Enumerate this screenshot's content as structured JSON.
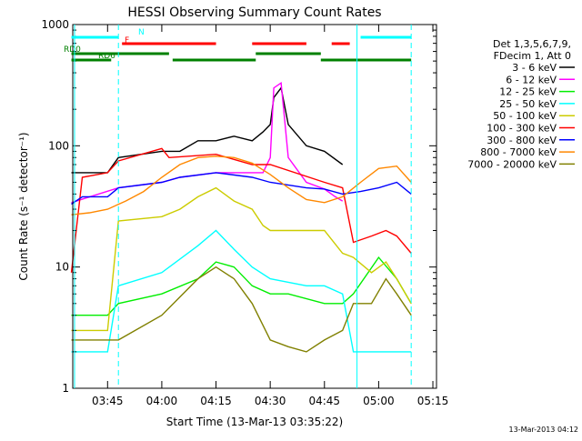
{
  "chart_data": {
    "type": "line",
    "title": "HESSI Observing Summary Count Rates",
    "xlabel": "Start Time (13-Mar-13 03:35:22)",
    "ylabel": "Count Rate (s⁻¹ detector⁻¹)",
    "y_scale": "log",
    "xlim": [
      "03:35:22",
      "05:16"
    ],
    "ylim": [
      1,
      1000
    ],
    "grid": false,
    "x_ticks": [
      "03:45",
      "04:00",
      "04:15",
      "04:30",
      "04:45",
      "05:00",
      "05:15"
    ],
    "y_ticks": [
      "1",
      "10",
      "100",
      "1000"
    ],
    "footer": "13-Mar-2013 04:12",
    "legend_position": "right",
    "legend_header": [
      "Det 1,3,5,6,7,9,",
      "FDecim 1, Att 0"
    ],
    "series": [
      {
        "name": "3 - 6 keV",
        "color": "#000000",
        "x": [
          "03:35",
          "03:45",
          "03:48",
          "04:00",
          "04:05",
          "04:10",
          "04:15",
          "04:20",
          "04:25",
          "04:28",
          "04:30",
          "04:31",
          "04:33",
          "04:35",
          "04:40",
          "04:45",
          "04:50"
        ],
        "y": [
          60,
          60,
          80,
          90,
          90,
          110,
          110,
          120,
          110,
          130,
          150,
          250,
          300,
          150,
          100,
          90,
          70
        ]
      },
      {
        "name": "6 - 12 keV",
        "color": "#ff00ff",
        "x": [
          "03:35",
          "03:48",
          "04:00",
          "04:05",
          "04:15",
          "04:25",
          "04:28",
          "04:30",
          "04:31",
          "04:33",
          "04:35",
          "04:40",
          "04:45",
          "04:48",
          "04:50"
        ],
        "y": [
          34,
          45,
          50,
          55,
          60,
          60,
          60,
          80,
          300,
          330,
          80,
          50,
          44,
          38,
          35
        ]
      },
      {
        "name": "12 - 25 keV",
        "color": "#00ee00",
        "x": [
          "03:35",
          "03:45",
          "03:48",
          "04:00",
          "04:10",
          "04:15",
          "04:20",
          "04:25",
          "04:30",
          "04:35",
          "04:45",
          "04:50",
          "04:53",
          "05:00",
          "05:05",
          "05:09"
        ],
        "y": [
          4,
          4,
          5,
          6,
          8,
          11,
          10,
          7,
          6,
          6,
          5,
          5,
          6,
          12,
          8,
          5
        ]
      },
      {
        "name": "25 - 50 keV",
        "color": "#00ffff",
        "x": [
          "03:35",
          "03:45",
          "03:48",
          "04:00",
          "04:10",
          "04:15",
          "04:20",
          "04:25",
          "04:30",
          "04:40",
          "04:45",
          "04:50",
          "04:53",
          "05:00",
          "05:05",
          "05:09"
        ],
        "y": [
          2,
          2,
          7,
          9,
          15,
          20,
          14,
          10,
          8,
          7,
          7,
          6,
          2,
          2,
          2,
          2
        ]
      },
      {
        "name": "50 - 100 keV",
        "color": "#cccc00",
        "x": [
          "03:35",
          "03:45",
          "03:48",
          "04:00",
          "04:05",
          "04:10",
          "04:15",
          "04:20",
          "04:25",
          "04:28",
          "04:30",
          "04:40",
          "04:45",
          "04:50",
          "04:53",
          "04:58",
          "05:02",
          "05:05",
          "05:09"
        ],
        "y": [
          3,
          3,
          24,
          26,
          30,
          38,
          45,
          35,
          30,
          22,
          20,
          20,
          20,
          13,
          12,
          9,
          11,
          8,
          5
        ]
      },
      {
        "name": "100 - 300 keV",
        "color": "#ff0000",
        "x": [
          "03:35",
          "03:38",
          "03:45",
          "03:48",
          "04:00",
          "04:02",
          "04:15",
          "04:25",
          "04:30",
          "04:45",
          "04:50",
          "04:53",
          "04:58",
          "05:02",
          "05:05",
          "05:09"
        ],
        "y": [
          9,
          55,
          60,
          75,
          95,
          80,
          85,
          70,
          70,
          50,
          45,
          16,
          18,
          20,
          18,
          13
        ]
      },
      {
        "name": "300 - 800 keV",
        "color": "#0000ff",
        "x": [
          "03:35",
          "03:38",
          "03:45",
          "03:48",
          "04:00",
          "04:05",
          "04:15",
          "04:25",
          "04:30",
          "04:40",
          "04:45",
          "04:50",
          "04:55",
          "05:00",
          "05:05",
          "05:09"
        ],
        "y": [
          33,
          38,
          38,
          45,
          50,
          55,
          60,
          55,
          50,
          45,
          44,
          40,
          42,
          45,
          50,
          40
        ]
      },
      {
        "name": "800 - 7000 keV",
        "color": "#ff8800",
        "x": [
          "03:35",
          "03:40",
          "03:45",
          "03:50",
          "03:55",
          "04:00",
          "04:05",
          "04:10",
          "04:15",
          "04:20",
          "04:25",
          "04:30",
          "04:35",
          "04:40",
          "04:45",
          "04:50",
          "04:55",
          "05:00",
          "05:05",
          "05:09"
        ],
        "y": [
          27,
          28,
          30,
          35,
          42,
          55,
          70,
          80,
          82,
          80,
          72,
          58,
          45,
          36,
          34,
          38,
          50,
          65,
          68,
          50
        ]
      },
      {
        "name": "7000 - 20000 keV",
        "color": "#808000",
        "x": [
          "03:35",
          "03:45",
          "03:48",
          "04:00",
          "04:10",
          "04:15",
          "04:20",
          "04:25",
          "04:30",
          "04:35",
          "04:40",
          "04:45",
          "04:50",
          "04:53",
          "04:58",
          "05:02",
          "05:05",
          "05:09"
        ],
        "y": [
          2.5,
          2.5,
          2.5,
          4,
          8,
          10,
          8,
          5,
          2.5,
          2.2,
          2,
          2.5,
          3,
          5,
          5,
          8,
          6,
          4
        ]
      }
    ],
    "status_bars": [
      {
        "label": "N",
        "color": "#00ffff",
        "segments": [
          [
            "03:35",
            "03:48"
          ],
          [
            "04:55",
            "05:09"
          ]
        ]
      },
      {
        "label": "F",
        "color": "#ff0000",
        "segments": [
          [
            "03:49",
            "04:15"
          ],
          [
            "04:25",
            "04:40"
          ],
          [
            "04:47",
            "04:52"
          ]
        ]
      },
      {
        "label": "RD0",
        "color": "#008000",
        "segments": [
          [
            "03:35",
            "04:02"
          ],
          [
            "04:26",
            "04:44"
          ]
        ]
      },
      {
        "label": "RD6",
        "color": "#008000",
        "segments": [
          [
            "03:35",
            "03:46"
          ],
          [
            "04:03",
            "04:26"
          ],
          [
            "04:44",
            "05:09"
          ]
        ]
      }
    ]
  }
}
